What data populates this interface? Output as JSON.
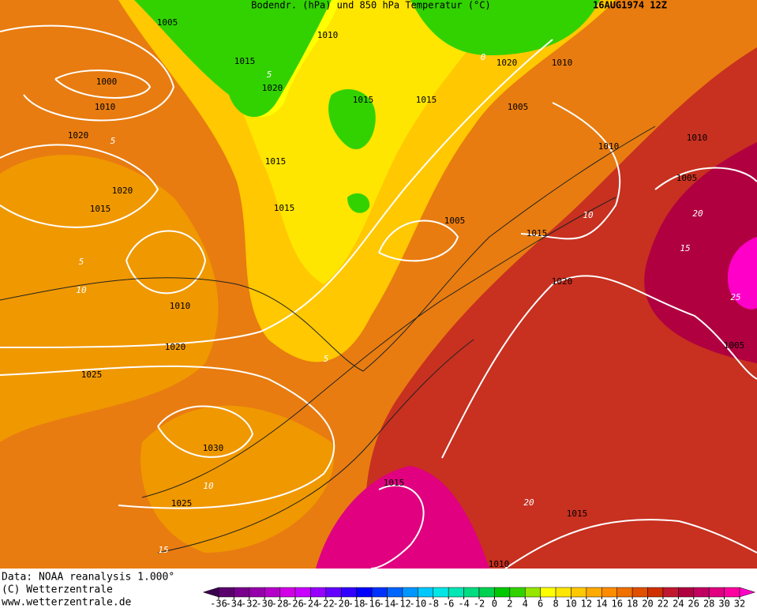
{
  "header": {
    "title": "Bodendr. (hPa) und 850 hPa Temperatur (°C)",
    "date": "16AUG1974 12Z"
  },
  "isobar_labels": [
    1005,
    1010,
    1015,
    1000,
    1010,
    1020,
    1015,
    1015,
    1020,
    1010,
    1005,
    1020,
    1015,
    1010,
    1010,
    1020,
    1015,
    1015,
    1005,
    1005,
    1015,
    1020,
    1010,
    1020,
    1005,
    1025,
    1030,
    1015,
    1025,
    1015,
    1010
  ],
  "temperature_labels": [
    5,
    0,
    5,
    10,
    20,
    15,
    5,
    10,
    25,
    5,
    10,
    20,
    15
  ],
  "footer": [
    "Data: NOAA reanalysis 1.000°",
    "(C) Wetterzentrale",
    "www.wetterzentrale.de"
  ],
  "colorbar": {
    "ticks": [
      -36,
      -34,
      -32,
      -30,
      -28,
      -26,
      -24,
      -22,
      -20,
      -18,
      -16,
      -14,
      -12,
      -10,
      -8,
      -6,
      -4,
      -2,
      0,
      2,
      4,
      6,
      8,
      10,
      12,
      14,
      16,
      18,
      20,
      22,
      24,
      26,
      28,
      30,
      32
    ],
    "colors": [
      "#3c0050",
      "#5a006e",
      "#78008c",
      "#9600aa",
      "#b400c8",
      "#d200e6",
      "#c800ff",
      "#9600ff",
      "#6400ff",
      "#3200ff",
      "#0000ff",
      "#0032ff",
      "#0064ff",
      "#0096ff",
      "#00c8ff",
      "#00e6e6",
      "#00e6b4",
      "#00dc82",
      "#00d250",
      "#00c800",
      "#32d200",
      "#96e600",
      "#ffff00",
      "#ffe600",
      "#ffc800",
      "#ffaa00",
      "#ff8c00",
      "#f07000",
      "#e05000",
      "#d03000",
      "#c01830",
      "#b00040",
      "#c00060",
      "#e00080",
      "#ff00a0",
      "#ff00c8"
    ]
  }
}
